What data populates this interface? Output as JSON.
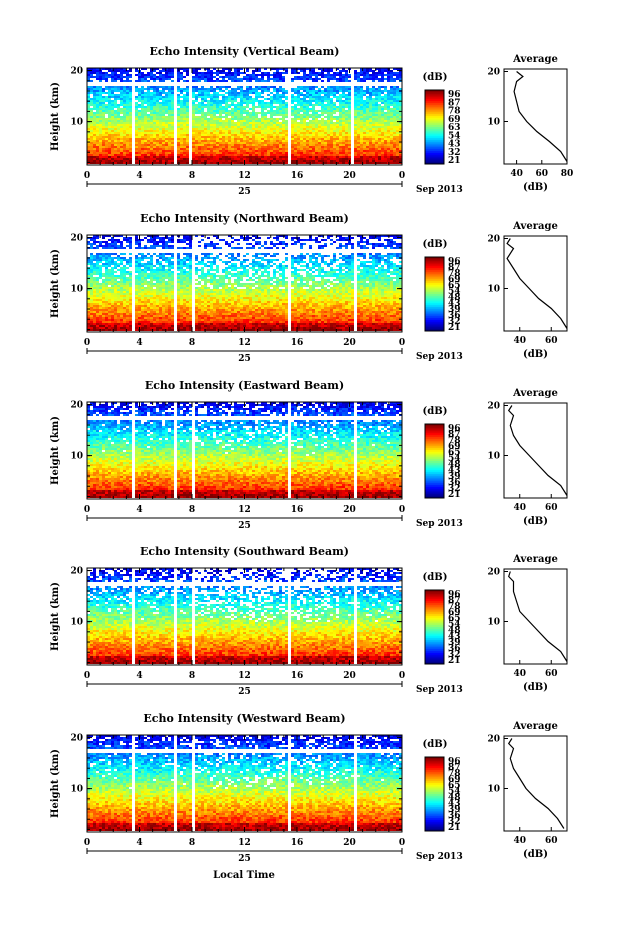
{
  "page": {
    "xlabel": "Local Time",
    "date_label": "Sep 2013",
    "day_label": "25",
    "colorbar_unit": "(dB)",
    "colorbar_ticks": [
      "96",
      "87",
      "78",
      "69",
      "65",
      "54",
      "48",
      "43",
      "39",
      "36",
      "32",
      "21"
    ]
  },
  "chart_data": [
    {
      "type": "heatmap",
      "title": "Echo Intensity (Vertical Beam)",
      "ylabel": "Height (km)",
      "xlabel": "Local Time",
      "x_ticks": [
        "0",
        "4",
        "8",
        "12",
        "16",
        "20",
        "0"
      ],
      "y_ticks": [
        "20",
        "10"
      ],
      "xlim": [
        0,
        24
      ],
      "ylim": [
        1.5,
        20.5
      ],
      "colorbar_ticks": [
        "96",
        "87",
        "78",
        "69",
        "63",
        "54",
        "43",
        "32",
        "21"
      ],
      "colorbar_label": "(dB)",
      "gaps_hours": [
        0.7,
        0.9,
        3.3,
        3.5,
        5.5,
        5.7,
        6.5,
        6.7,
        7.7,
        7.9,
        15.2,
        15.4,
        20.1,
        20.3
      ],
      "profile": {
        "title": "Average",
        "xlabel": "(dB)",
        "x_ticks": [
          "40",
          "60",
          "80"
        ],
        "y_ticks": [
          "20",
          "10"
        ],
        "xlim": [
          30,
          80
        ],
        "heights_km": [
          2,
          4,
          6,
          8,
          10,
          12,
          14,
          16,
          18,
          19,
          20
        ],
        "values_db": [
          80,
          75,
          66,
          56,
          48,
          42,
          40,
          38,
          40,
          45,
          40
        ]
      }
    },
    {
      "type": "heatmap",
      "title": "Echo Intensity (Northward Beam)",
      "ylabel": "Height (km)",
      "xlabel": "Local Time",
      "x_ticks": [
        "0",
        "4",
        "8",
        "12",
        "16",
        "20",
        "0"
      ],
      "y_ticks": [
        "20",
        "10"
      ],
      "xlim": [
        0,
        24
      ],
      "ylim": [
        1.5,
        20.5
      ],
      "colorbar_ticks": [
        "96",
        "87",
        "78",
        "69",
        "65",
        "54",
        "48",
        "43",
        "39",
        "36",
        "32",
        "21"
      ],
      "colorbar_label": "(dB)",
      "gaps_hours": [
        0.7,
        0.9,
        3.3,
        3.5,
        5.5,
        5.7,
        6.6,
        6.8,
        7.8,
        8.0,
        15.3,
        15.5,
        20.2,
        20.4
      ],
      "profile": {
        "title": "Average",
        "xlabel": "(dB)",
        "x_ticks": [
          "40",
          "60"
        ],
        "y_ticks": [
          "20",
          "10"
        ],
        "xlim": [
          30,
          70
        ],
        "heights_km": [
          2,
          4,
          6,
          8,
          10,
          12,
          14,
          16,
          18,
          19,
          20
        ],
        "values_db": [
          70,
          66,
          60,
          52,
          46,
          40,
          36,
          32,
          36,
          32,
          34
        ]
      }
    },
    {
      "type": "heatmap",
      "title": "Echo Intensity (Eastward Beam)",
      "ylabel": "Height (km)",
      "xlabel": "Local Time",
      "x_ticks": [
        "0",
        "4",
        "8",
        "12",
        "16",
        "20",
        "0"
      ],
      "y_ticks": [
        "20",
        "10"
      ],
      "xlim": [
        0,
        24
      ],
      "ylim": [
        1.5,
        20.5
      ],
      "colorbar_ticks": [
        "96",
        "87",
        "78",
        "69",
        "65",
        "54",
        "48",
        "43",
        "39",
        "36",
        "32",
        "21"
      ],
      "colorbar_label": "(dB)",
      "gaps_hours": [
        0.7,
        0.9,
        3.3,
        3.5,
        5.5,
        5.7,
        6.6,
        6.8,
        7.8,
        8.0,
        15.3,
        15.5,
        20.2,
        20.4
      ],
      "profile": {
        "title": "Average",
        "xlabel": "(dB)",
        "x_ticks": [
          "40",
          "60"
        ],
        "y_ticks": [
          "20",
          "10"
        ],
        "xlim": [
          30,
          70
        ],
        "heights_km": [
          2,
          4,
          6,
          8,
          10,
          12,
          14,
          16,
          18,
          19,
          20
        ],
        "values_db": [
          70,
          66,
          58,
          52,
          46,
          40,
          36,
          34,
          36,
          33,
          35
        ]
      }
    },
    {
      "type": "heatmap",
      "title": "Echo Intensity (Southward Beam)",
      "ylabel": "Height (km)",
      "xlabel": "Local Time",
      "x_ticks": [
        "0",
        "4",
        "8",
        "12",
        "16",
        "20",
        "0"
      ],
      "y_ticks": [
        "20",
        "10"
      ],
      "xlim": [
        0,
        24
      ],
      "ylim": [
        1.5,
        20.5
      ],
      "colorbar_ticks": [
        "96",
        "87",
        "78",
        "69",
        "65",
        "54",
        "48",
        "43",
        "39",
        "36",
        "32",
        "21"
      ],
      "colorbar_label": "(dB)",
      "gaps_hours": [
        0.7,
        0.9,
        3.3,
        3.5,
        5.5,
        5.7,
        6.6,
        6.8,
        7.8,
        8.0,
        15.3,
        15.5,
        20.2,
        20.4
      ],
      "profile": {
        "title": "Average",
        "xlabel": "(dB)",
        "x_ticks": [
          "40",
          "60"
        ],
        "y_ticks": [
          "20",
          "10"
        ],
        "xlim": [
          30,
          70
        ],
        "heights_km": [
          2,
          4,
          6,
          8,
          10,
          12,
          14,
          16,
          18,
          19,
          20
        ],
        "values_db": [
          70,
          66,
          58,
          52,
          46,
          40,
          38,
          36,
          36,
          33,
          34
        ]
      }
    },
    {
      "type": "heatmap",
      "title": "Echo Intensity (Westward Beam)",
      "ylabel": "Height (km)",
      "xlabel": "Local Time",
      "x_ticks": [
        "0",
        "4",
        "8",
        "12",
        "16",
        "20",
        "0"
      ],
      "y_ticks": [
        "20",
        "10"
      ],
      "xlim": [
        0,
        24
      ],
      "ylim": [
        1.5,
        20.5
      ],
      "colorbar_ticks": [
        "96",
        "87",
        "78",
        "69",
        "65",
        "54",
        "48",
        "43",
        "39",
        "36",
        "32",
        "21"
      ],
      "colorbar_label": "(dB)",
      "gaps_hours": [
        0.7,
        0.9,
        3.3,
        3.5,
        5.5,
        5.7,
        6.6,
        6.8,
        7.8,
        8.0,
        15.3,
        15.5,
        20.2,
        20.4
      ],
      "profile": {
        "title": "Average",
        "xlabel": "(dB)",
        "x_ticks": [
          "40",
          "60"
        ],
        "y_ticks": [
          "20",
          "10"
        ],
        "xlim": [
          30,
          70
        ],
        "heights_km": [
          2,
          4,
          6,
          8,
          10,
          12,
          14,
          16,
          18,
          19,
          20
        ],
        "values_db": [
          68,
          64,
          58,
          50,
          44,
          40,
          36,
          34,
          36,
          33,
          35
        ]
      }
    }
  ]
}
